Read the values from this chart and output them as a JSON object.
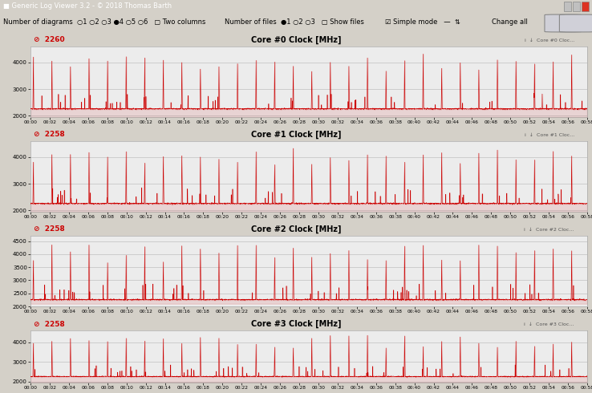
{
  "cores": [
    {
      "label": "Core #0 Clock [MHz]",
      "tag": "2260",
      "baseline": 2260,
      "yticks": [
        2000,
        3000,
        4000
      ],
      "ymin": 1950,
      "ymax": 4600
    },
    {
      "label": "Core #1 Clock [MHz]",
      "tag": "2258",
      "baseline": 2258,
      "yticks": [
        2000,
        3000,
        4000
      ],
      "ymin": 1950,
      "ymax": 4600
    },
    {
      "label": "Core #2 Clock [MHz]",
      "tag": "2258",
      "baseline": 2258,
      "yticks": [
        2000,
        2500,
        3000,
        3500,
        4000,
        4500
      ],
      "ymin": 2100,
      "ymax": 4700
    },
    {
      "label": "Core #3 Clock [MHz]",
      "tag": "2258",
      "baseline": 2258,
      "yticks": [
        2000,
        3000,
        4000
      ],
      "ymin": 1950,
      "ymax": 4600
    }
  ],
  "x_labels": [
    "00:00",
    "00:02",
    "00:04",
    "00:06",
    "00:08",
    "00:10",
    "00:12",
    "00:14",
    "00:16",
    "00:18",
    "00:20",
    "00:22",
    "00:24",
    "00:26",
    "00:28",
    "00:30",
    "00:32",
    "00:34",
    "00:36",
    "00:38",
    "00:40",
    "00:42",
    "00:44",
    "00:46",
    "00:48",
    "00:50",
    "00:52",
    "00:54",
    "00:56",
    "00:58"
  ],
  "n_points": 3540,
  "bg_outer": "#d4d0c8",
  "bg_plot": "#ececec",
  "bg_header": "#e0ddd8",
  "bg_titlebar": "#4a6080",
  "line_color": "#cc0000",
  "fill_color": "#cc0000",
  "grid_color": "#c0c0c0",
  "tag_color": "#cc0000",
  "seed": 42,
  "titlebar_text": "■ Generic Log Viewer 3.2 - © 2018 Thomas Barth"
}
